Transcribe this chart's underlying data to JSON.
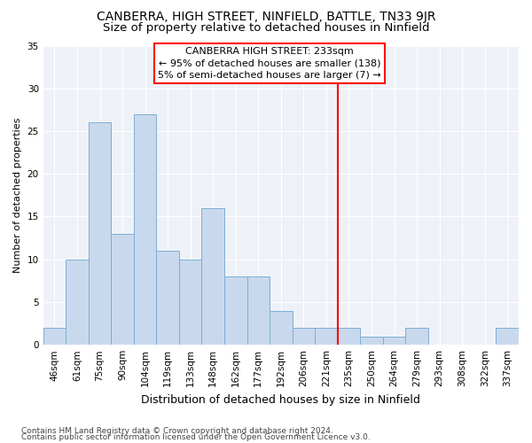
{
  "title1": "CANBERRA, HIGH STREET, NINFIELD, BATTLE, TN33 9JR",
  "title2": "Size of property relative to detached houses in Ninfield",
  "xlabel": "Distribution of detached houses by size in Ninfield",
  "ylabel": "Number of detached properties",
  "categories": [
    "46sqm",
    "61sqm",
    "75sqm",
    "90sqm",
    "104sqm",
    "119sqm",
    "133sqm",
    "148sqm",
    "162sqm",
    "177sqm",
    "192sqm",
    "206sqm",
    "221sqm",
    "235sqm",
    "250sqm",
    "264sqm",
    "279sqm",
    "293sqm",
    "308sqm",
    "322sqm",
    "337sqm"
  ],
  "values": [
    2,
    10,
    26,
    13,
    27,
    11,
    10,
    16,
    8,
    8,
    4,
    2,
    2,
    2,
    1,
    1,
    2,
    0,
    0,
    0,
    2
  ],
  "bar_color": "#c9d9ed",
  "bar_edge_color": "#7aafd4",
  "vline_index": 13,
  "vline_color": "red",
  "annotation_title": "CANBERRA HIGH STREET: 233sqm",
  "annotation_line1": "← 95% of detached houses are smaller (138)",
  "annotation_line2": "5% of semi-detached houses are larger (7) →",
  "annotation_box_edge_color": "red",
  "bg_color": "#eef2f8",
  "grid_color": "white",
  "footer1": "Contains HM Land Registry data © Crown copyright and database right 2024.",
  "footer2": "Contains public sector information licensed under the Open Government Licence v3.0.",
  "ylim": [
    0,
    35
  ],
  "yticks": [
    0,
    5,
    10,
    15,
    20,
    25,
    30,
    35
  ],
  "title1_fontsize": 10,
  "title2_fontsize": 9.5,
  "xlabel_fontsize": 9,
  "ylabel_fontsize": 8,
  "tick_fontsize": 7.5,
  "annotation_fontsize": 8,
  "footer_fontsize": 6.5
}
